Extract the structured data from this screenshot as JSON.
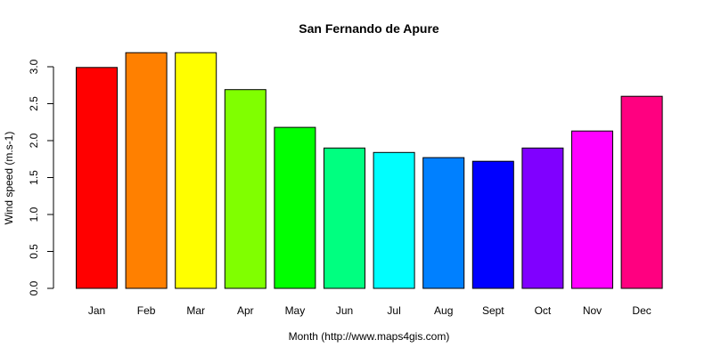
{
  "chart_data": {
    "type": "bar",
    "title": "San Fernando de Apure",
    "xlabel": "Month (http://www.maps4gis.com)",
    "ylabel": "Wind speed (m.s-1)",
    "categories": [
      "Jan",
      "Feb",
      "Mar",
      "Apr",
      "May",
      "Jun",
      "Jul",
      "Aug",
      "Sept",
      "Oct",
      "Nov",
      "Dec"
    ],
    "values": [
      2.99,
      3.19,
      3.19,
      2.69,
      2.18,
      1.9,
      1.84,
      1.77,
      1.72,
      1.9,
      2.13,
      2.6
    ],
    "colors": [
      "#FF0000",
      "#FF8000",
      "#FFFF00",
      "#80FF00",
      "#00FF00",
      "#00FF80",
      "#00FFFF",
      "#0080FF",
      "#0000FF",
      "#8000FF",
      "#FF00FF",
      "#FF0080"
    ],
    "yticks": [
      "0.0",
      "0.5",
      "1.0",
      "1.5",
      "2.0",
      "2.5",
      "3.0"
    ],
    "ylim": [
      0,
      3.2
    ],
    "grid": false
  }
}
